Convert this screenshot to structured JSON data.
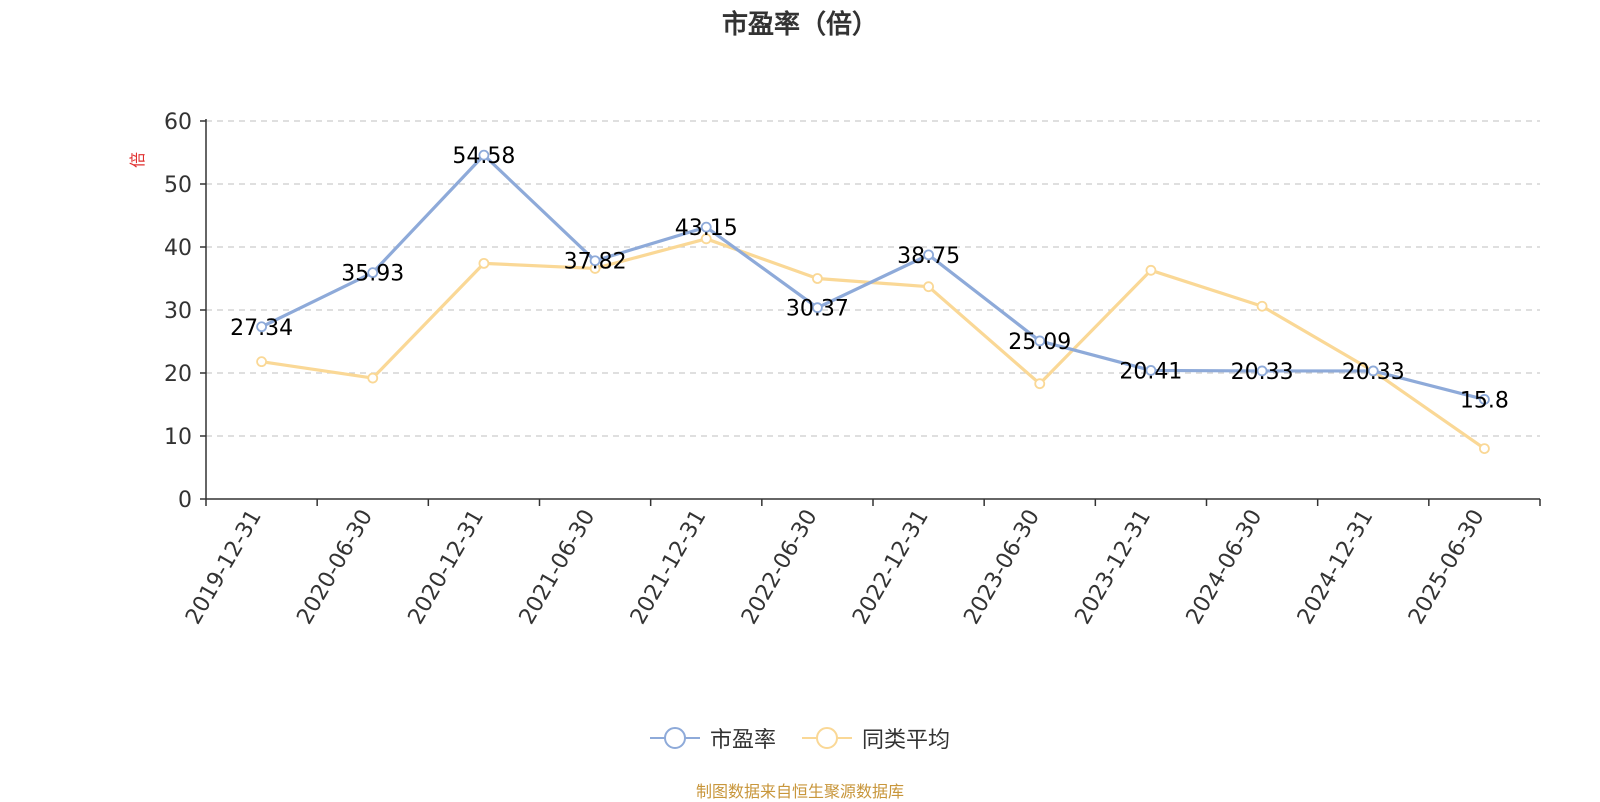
{
  "chart_data": {
    "type": "line",
    "title": "市盈率（倍）",
    "ylabel": "倍",
    "ylim": [
      0,
      60
    ],
    "yticks": [
      0,
      10,
      20,
      30,
      40,
      50,
      60
    ],
    "grid": "horizontal-dashed",
    "legend_position": "bottom",
    "categories": [
      "2019-12-31",
      "2020-06-30",
      "2020-12-31",
      "2021-06-30",
      "2021-12-31",
      "2022-06-30",
      "2022-12-31",
      "2023-06-30",
      "2023-12-31",
      "2024-06-30",
      "2024-12-31",
      "2025-06-30"
    ],
    "series": [
      {
        "name": "市盈率",
        "color": "#8eaad9",
        "values": [
          27.34,
          35.93,
          54.58,
          37.82,
          43.15,
          30.37,
          38.75,
          25.09,
          20.41,
          20.33,
          20.33,
          15.8
        ],
        "labels": [
          "27.34",
          "35.93",
          "54.58",
          "37.82",
          "43.15",
          "30.37",
          "38.75",
          "25.09",
          "20.41",
          "20.33",
          "20.33",
          "15.8"
        ]
      },
      {
        "name": "同类平均",
        "color": "#fad896",
        "values": [
          21.8,
          19.2,
          37.4,
          36.6,
          41.3,
          35.0,
          33.7,
          18.3,
          36.3,
          30.6,
          20.3,
          8.0
        ]
      }
    ]
  },
  "legend": {
    "items": [
      "市盈率",
      "同类平均"
    ]
  },
  "footer": {
    "source": "制图数据来自恒生聚源数据库"
  },
  "colors": {
    "axis": "#333333",
    "grid": "#cccccc",
    "ylabel": "#e0302f",
    "source": "#c8963b"
  }
}
